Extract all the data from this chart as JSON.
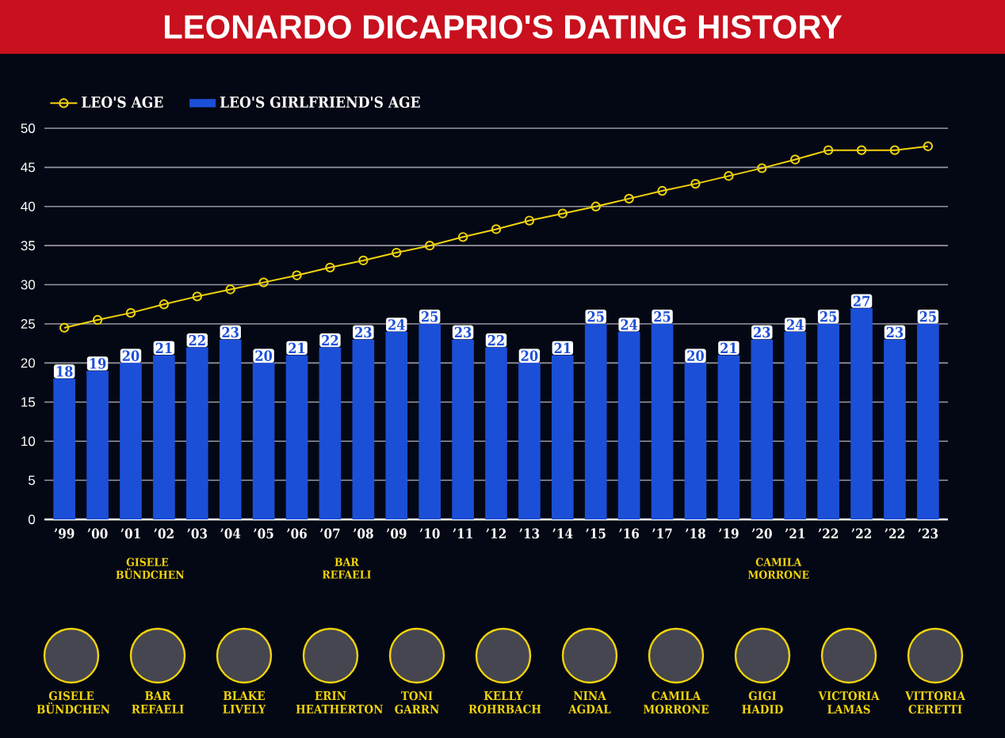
{
  "chart_data": {
    "type": "bar",
    "title": "LEONARDO DICAPRIO'S DATING HISTORY",
    "categories": [
      "’99",
      "’00",
      "’01",
      "’02",
      "’03",
      "’04",
      "’05",
      "’06",
      "’07",
      "’08",
      "’09",
      "’10",
      "’11",
      "’12",
      "’13",
      "’14",
      "’15",
      "’16",
      "’17",
      "’18",
      "’19",
      "’20",
      "’21",
      "’22",
      "’22",
      "’22",
      "’23"
    ],
    "series": [
      {
        "name": "LEO'S AGE",
        "type": "line",
        "color": "#f2d40c",
        "values": [
          24.5,
          25.5,
          26.4,
          27.5,
          28.5,
          29.4,
          30.3,
          31.2,
          32.2,
          33.1,
          34.1,
          35.0,
          36.1,
          37.1,
          38.2,
          39.1,
          40.0,
          41.0,
          42.0,
          42.9,
          43.9,
          44.9,
          46.0,
          47.2,
          47.2,
          47.2,
          47.7
        ]
      },
      {
        "name": "LEO'S GIRLFRIEND'S AGE",
        "color": "#1c4fd8",
        "values": [
          18,
          19,
          20,
          21,
          22,
          23,
          20,
          21,
          22,
          23,
          24,
          25,
          23,
          22,
          20,
          21,
          25,
          24,
          25,
          20,
          21,
          23,
          24,
          25,
          27,
          23,
          25
        ],
        "value_labels": [
          "18",
          "19",
          "20",
          "21",
          "22",
          "23",
          "20",
          "21",
          "22",
          "23",
          "24",
          "25",
          "23",
          "22",
          "20",
          "21",
          "25",
          "24",
          "25",
          "20",
          "21",
          "23",
          "24",
          "25",
          "27",
          "23",
          "25"
        ]
      }
    ],
    "ylim": [
      0,
      50
    ],
    "yticks": [
      0,
      5,
      10,
      15,
      20,
      25,
      30,
      35,
      40,
      45,
      50
    ],
    "grid": "y",
    "legend": "top left",
    "marker": "circle",
    "annotations": [
      "GISELE BÜNDCHEN",
      "BAR REFAELI",
      "CAMILA MORRONE",
      "GISELE BÜNDCHEN",
      "BAR REFAELI",
      "BLAKE LIVELY",
      "ERIN HEATHERTON",
      "TONI GARRN",
      "KELLY ROHRBACH",
      "NINA AGDAL",
      "CAMILA MORRONE",
      "GIGI HADID",
      "VICTORIA LAMAS",
      "VITTORIA CERETTI"
    ]
  }
}
